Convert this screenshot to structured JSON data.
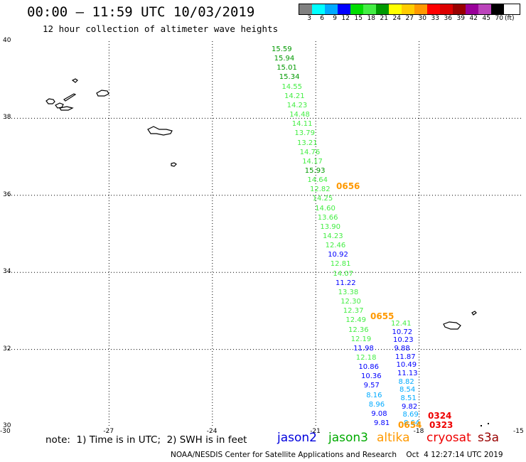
{
  "title": "00:00 – 11:59 UTC 10/03/2019",
  "subtitle": "12 hour collection of altimeter wave heights",
  "legend": {
    "colors": [
      "#808080",
      "#00ffff",
      "#00aaff",
      "#0000ff",
      "#00dd00",
      "#44ee44",
      "#009900",
      "#ffff00",
      "#ffcc00",
      "#ff9900",
      "#ff0000",
      "#dd0000",
      "#990000",
      "#990099",
      "#bb44bb",
      "#000000"
    ],
    "labels": [
      "3",
      "6",
      "9",
      "12",
      "15",
      "18",
      "21",
      "24",
      "27",
      "30",
      "33",
      "36",
      "39",
      "42",
      "45",
      "70",
      "(ft)"
    ]
  },
  "axes": {
    "x_ticks": [
      "-30",
      "-27",
      "-24",
      "-21",
      "-18",
      "-15"
    ],
    "y_ticks": [
      "40",
      "38",
      "36",
      "34",
      "32",
      "30"
    ],
    "lon_range": [
      -30,
      -15
    ],
    "lat_range": [
      30,
      40
    ]
  },
  "note": "note:  1) Time is in UTC;  2) SWH is in feet",
  "satellites": [
    {
      "name": "jason2",
      "color": "#0000dd"
    },
    {
      "name": "jason3",
      "color": "#00aa00"
    },
    {
      "name": "altika",
      "color": "#ff9900"
    },
    {
      "name": "cryosat",
      "color": "#ee0000"
    },
    {
      "name": "s3a",
      "color": "#990000"
    }
  ],
  "footer": "NOAA/NESDIS Center for Satellite Applications and Research    Oct  4 12:27:14 UTC 2019",
  "track_A": {
    "satellite": "jason3",
    "values": [
      "15.59",
      "15.94",
      "15.01",
      "15.34",
      "14.55",
      "14.21",
      "14.23",
      "14.48",
      "14.11",
      "13.79",
      "13.21",
      "14.76",
      "14.17",
      "15.93",
      "14.64",
      "12.82",
      "14.25",
      "14.60",
      "13.66",
      "13.90",
      "14.23",
      "12.46",
      "10.92",
      "12.81",
      "14.07",
      "11.22",
      "13.38",
      "12.30",
      "12.37",
      "12.49",
      "12.36",
      "12.19",
      "11.98",
      "12.18",
      "10.86",
      "10.36",
      "9.57",
      "8.16",
      "8.96",
      "9.08",
      "9.81"
    ],
    "colors": [
      "#009900",
      "#009900",
      "#009900",
      "#009900",
      "#44ee44",
      "#44ee44",
      "#44ee44",
      "#44ee44",
      "#44ee44",
      "#44ee44",
      "#44ee44",
      "#44ee44",
      "#44ee44",
      "#009900",
      "#44ee44",
      "#44ee44",
      "#44ee44",
      "#44ee44",
      "#44ee44",
      "#44ee44",
      "#44ee44",
      "#44ee44",
      "#0000ff",
      "#44ee44",
      "#44ee44",
      "#0000ff",
      "#44ee44",
      "#44ee44",
      "#44ee44",
      "#44ee44",
      "#44ee44",
      "#44ee44",
      "#0000ff",
      "#44ee44",
      "#0000ff",
      "#0000ff",
      "#0000ff",
      "#00aaff",
      "#00aaff",
      "#0000ff",
      "#0000ff"
    ]
  },
  "track_B": {
    "satellite": "jason3",
    "values": [
      "12.41",
      "10.72",
      "10.23",
      "9.88",
      "11.87",
      "10.49",
      "11.13",
      "8.82",
      "8.54",
      "8.51",
      "9.82",
      "8.69",
      "8.64"
    ],
    "colors": [
      "#44ee44",
      "#0000ff",
      "#0000ff",
      "#0000ff",
      "#0000ff",
      "#0000ff",
      "#0000ff",
      "#00aaff",
      "#00aaff",
      "#00aaff",
      "#0000ff",
      "#00aaff",
      "#00aaff"
    ]
  },
  "time_labels": [
    {
      "text": "0656",
      "color": "#ff9900"
    },
    {
      "text": "0655",
      "color": "#ff9900"
    },
    {
      "text": "0654",
      "color": "#ff9900"
    },
    {
      "text": "0324",
      "color": "#ee0000"
    },
    {
      "text": "0323",
      "color": "#ee0000"
    }
  ]
}
